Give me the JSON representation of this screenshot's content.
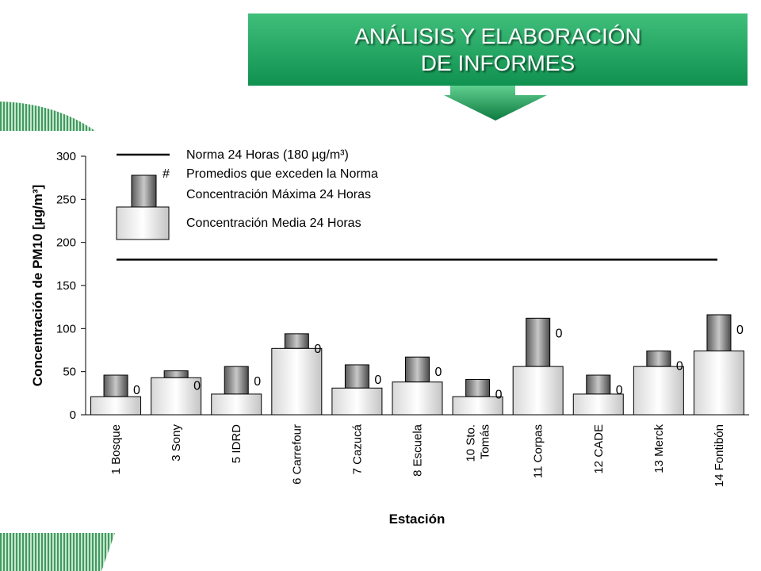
{
  "header": {
    "line1": "ANÁLISIS Y ELABORACIÓN",
    "line2": "DE INFORMES",
    "color": "#1a9a5a"
  },
  "chart_data": {
    "type": "bar",
    "xlabel": "Estación",
    "ylabel": "Concentración de PM10 [µg/m³]",
    "ylim": [
      0,
      300
    ],
    "yticks": [
      0,
      50,
      100,
      150,
      200,
      250,
      300
    ],
    "norm_line": 180,
    "grid": false,
    "legend_placement": "top",
    "legend": {
      "norm": "Norma 24 Horas (180 µg/m³)",
      "exceed_marker": "#",
      "exceed": "Promedios que exceden la Norma",
      "max": "Concentración Máxima 24 Horas",
      "mean": "Concentración Media 24 Horas"
    },
    "categories": [
      [
        "1 Bosque"
      ],
      [
        "3 Sony"
      ],
      [
        "5 IDRD"
      ],
      [
        "6 Carrefour"
      ],
      [
        "7 Cazucá"
      ],
      [
        "8 Escuela"
      ],
      [
        "10 Sto.",
        "Tomás"
      ],
      [
        "11 Corpas"
      ],
      [
        "12 CADE"
      ],
      [
        "13 Merck"
      ],
      [
        "14 Fontibón"
      ]
    ],
    "series": [
      {
        "name": "Concentración Media 24 Horas",
        "values": [
          21,
          43,
          24,
          77,
          31,
          38,
          21,
          56,
          24,
          56,
          74
        ]
      },
      {
        "name": "Concentración Máxima 24 Horas",
        "values": [
          46,
          51,
          56,
          94,
          58,
          67,
          41,
          112,
          46,
          74,
          116
        ]
      }
    ],
    "exceed_counts": [
      "0",
      "0",
      "0",
      "0",
      "0",
      "0",
      "0",
      "0",
      "0",
      "0",
      "0"
    ]
  }
}
